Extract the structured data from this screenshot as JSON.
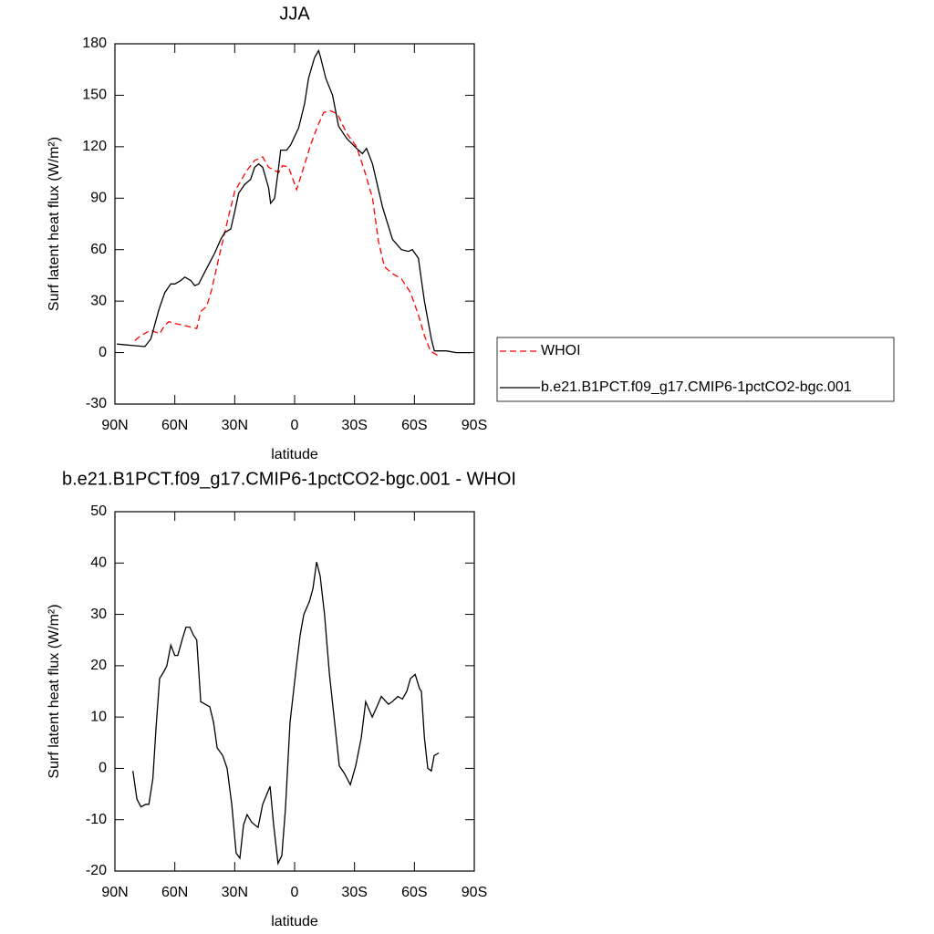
{
  "chart_data": [
    {
      "type": "line",
      "title": "JJA",
      "xlabel": "latitude",
      "ylabel": "Surf latent heat flux (W/m²)",
      "xlim": [
        90,
        -90
      ],
      "xticks": [
        {
          "value": 90,
          "label": "90N"
        },
        {
          "value": 60,
          "label": "60N"
        },
        {
          "value": 30,
          "label": "30N"
        },
        0,
        {
          "value": -30,
          "label": "30S"
        },
        {
          "value": -60,
          "label": "60S"
        },
        {
          "value": -90,
          "label": "90S"
        }
      ],
      "ylim": [
        -30,
        180
      ],
      "yticks": [
        -30,
        0,
        30,
        60,
        90,
        120,
        150,
        180
      ],
      "legend": "outside right",
      "series": [
        {
          "name": "WHOI",
          "color": "#ff0000",
          "line_style": "dashed",
          "x": [
            80,
            77,
            72,
            67.6,
            65,
            63,
            60,
            56,
            49,
            47,
            44,
            41.5,
            38,
            34,
            30,
            24,
            20,
            16,
            13,
            8,
            6,
            3,
            -1,
            -4,
            -8,
            -11.5,
            -14.6,
            -18,
            -21.5,
            -26,
            -31,
            -35,
            -39,
            -42,
            -45,
            -49,
            -53.5,
            -58,
            -62,
            -65,
            -68,
            -72
          ],
          "values": [
            7,
            10,
            13,
            11,
            16,
            18,
            17,
            16,
            14,
            24,
            27,
            37,
            55,
            75,
            94,
            106,
            112,
            114,
            108,
            105,
            109,
            108,
            95,
            106,
            121,
            132,
            140,
            141,
            139,
            128,
            120,
            106,
            90,
            65,
            50,
            46,
            43,
            35,
            22,
            10,
            1,
            -2
          ]
        },
        {
          "name": "b.e21.B1PCT.f09_g17.CMIP6-1pctCO2-bgc.001",
          "color": "#000000",
          "line_style": "solid",
          "x": [
            89,
            80,
            75,
            72,
            68,
            65,
            62,
            60,
            57,
            55,
            52,
            50,
            48,
            45,
            40,
            37,
            35,
            32,
            30,
            28,
            25,
            22,
            20,
            18,
            16,
            13,
            12,
            10,
            8,
            7,
            4,
            2,
            -2,
            -5,
            -7,
            -10,
            -12,
            -13,
            -15.6,
            -19,
            -22,
            -26,
            -31,
            -34,
            -36,
            -39,
            -44,
            -49,
            -53.5,
            -57,
            -59,
            -62,
            -65,
            -68.5,
            -70,
            -76,
            -81,
            -88
          ],
          "values": [
            5,
            4,
            3.5,
            8,
            25,
            35,
            40,
            40,
            42,
            44,
            42,
            39,
            40,
            47,
            58,
            66,
            70,
            72,
            82,
            93,
            98,
            101,
            108,
            110,
            108,
            96,
            87,
            90,
            108,
            118,
            118,
            121,
            131,
            145,
            160,
            172,
            176,
            172,
            160,
            150,
            132,
            125,
            119,
            116,
            119,
            110,
            85,
            66,
            60,
            59,
            60,
            55,
            30,
            8,
            1,
            1,
            0,
            0
          ]
        }
      ]
    },
    {
      "type": "line",
      "title": "b.e21.B1PCT.f09_g17.CMIP6-1pctCO2-bgc.001 - WHOI",
      "xlabel": "latitude",
      "ylabel": "Surf latent heat flux (W/m²)",
      "xlim": [
        90,
        -90
      ],
      "xticks": [
        {
          "value": 90,
          "label": "90N"
        },
        {
          "value": 60,
          "label": "60N"
        },
        {
          "value": 30,
          "label": "30N"
        },
        0,
        {
          "value": -30,
          "label": "30S"
        },
        {
          "value": -60,
          "label": "60S"
        },
        {
          "value": -90,
          "label": "90S"
        }
      ],
      "ylim": [
        -20,
        50
      ],
      "yticks": [
        -20,
        -10,
        0,
        10,
        20,
        30,
        40,
        50
      ],
      "series": [
        {
          "color": "#000000",
          "line_style": "solid",
          "x": [
            81,
            79,
            77,
            74.5,
            73,
            71,
            69.4,
            67.6,
            65.3,
            64,
            62,
            60,
            58.5,
            56,
            54.4,
            52.5,
            50.7,
            49,
            47,
            42.5,
            40.6,
            38.8,
            36,
            33.8,
            31.5,
            29.3,
            27.4,
            25.6,
            23.8,
            21.5,
            18.3,
            16,
            12.3,
            10.5,
            8.3,
            6.4,
            4.6,
            2.3,
            -0.9,
            -2.8,
            -4.6,
            -7.4,
            -9.2,
            -11,
            -12.8,
            -15,
            -17.4,
            -22.4,
            -25,
            -27.9,
            -30.6,
            -33.4,
            -35.6,
            -38.9,
            -41.2,
            -43.4,
            -47,
            -48.9,
            -51.7,
            -54,
            -56.2,
            -58,
            -60.4,
            -62.6,
            -63.5,
            -65,
            -66.7,
            -68.5,
            -69.9,
            -72.2
          ],
          "values": [
            -0.5,
            -6,
            -7.5,
            -7,
            -7,
            -2,
            8,
            17.5,
            19,
            20,
            24,
            22,
            22,
            25.5,
            27.5,
            27.5,
            26,
            25,
            13,
            12,
            9,
            4,
            2.5,
            0,
            -7,
            -16.5,
            -17.5,
            -11,
            -9,
            -10.5,
            -11.5,
            -7,
            -3.5,
            -11,
            -18.5,
            -17,
            -8,
            9,
            20,
            26,
            30,
            32.5,
            35,
            40.2,
            37.5,
            30,
            18.5,
            0.5,
            -1,
            -3.2,
            0.5,
            6,
            13,
            10,
            12,
            14,
            12.5,
            13,
            14,
            13.5,
            15,
            17.5,
            18.3,
            15.5,
            15,
            6,
            0,
            -0.5,
            2.5,
            3
          ]
        }
      ]
    }
  ]
}
